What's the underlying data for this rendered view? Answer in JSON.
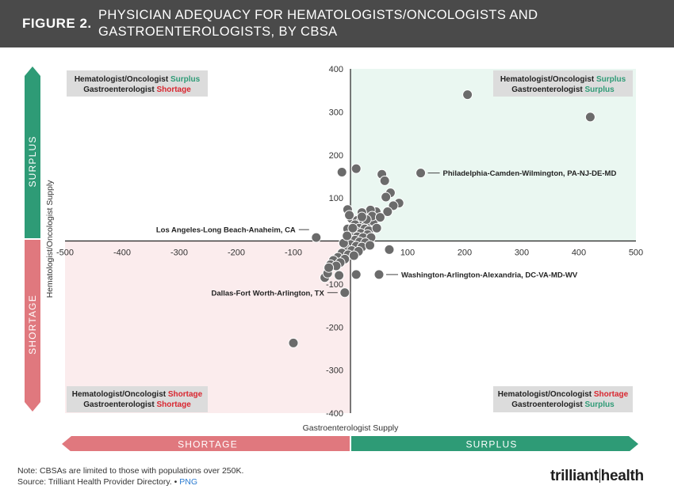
{
  "header": {
    "figure_label": "FIGURE 2.",
    "title": "PHYSICIAN ADEQUACY FOR HEMATOLOGISTS/ONCOLOGISTS AND GASTROENTEROLOGISTS, BY CBSA"
  },
  "colors": {
    "surplus": "#2e9b76",
    "shortage": "#e0787e",
    "surplus_text": "#2e9b76",
    "shortage_text": "#d9262f",
    "quadrant_surplus_bg": "#eaf7f1",
    "quadrant_shortage_bg": "#fbeced",
    "point_fill": "#6b6b6b",
    "point_stroke": "#ffffff"
  },
  "quadrants": {
    "top_left": {
      "line1": "Hematologist/Oncologist",
      "status1": "Surplus",
      "line2": "Gastroenterologist",
      "status2": "Shortage"
    },
    "top_right": {
      "line1": "Hematologist/Oncologist",
      "status1": "Surplus",
      "line2": "Gastroenterologist",
      "status2": "Surplus"
    },
    "bottom_left": {
      "line1": "Hematologist/Oncologist",
      "status1": "Shortage",
      "line2": "Gastroenterologist",
      "status2": "Shortage"
    },
    "bottom_right": {
      "line1": "Hematologist/Oncologist",
      "status1": "Shortage",
      "line2": "Gastroenterologist",
      "status2": "Surplus"
    }
  },
  "axis_bars": {
    "left_surplus": "SURPLUS",
    "left_shortage": "SHORTAGE",
    "bottom_shortage": "SHORTAGE",
    "bottom_surplus": "SURPLUS"
  },
  "chart_data": {
    "type": "scatter",
    "xlabel": "Gastroenterologist Supply",
    "ylabel": "Hematologist/Oncologist Supply",
    "xlim": [
      -500,
      500
    ],
    "ylim": [
      -400,
      400
    ],
    "xticks": [
      -500,
      -400,
      -300,
      -200,
      -100,
      0,
      100,
      200,
      300,
      400,
      500
    ],
    "yticks": [
      -400,
      -300,
      -200,
      -100,
      0,
      100,
      200,
      300,
      400
    ],
    "grid": false,
    "points": [
      [
        205,
        340
      ],
      [
        420,
        288
      ],
      [
        123,
        158
      ],
      [
        -15,
        160
      ],
      [
        10,
        168
      ],
      [
        55,
        155
      ],
      [
        60,
        140
      ],
      [
        70,
        112
      ],
      [
        62,
        102
      ],
      [
        85,
        88
      ],
      [
        75,
        82
      ],
      [
        65,
        68
      ],
      [
        45,
        68
      ],
      [
        30,
        60
      ],
      [
        35,
        72
      ],
      [
        20,
        66
      ],
      [
        -5,
        73
      ],
      [
        -60,
        8
      ],
      [
        -10,
        -120
      ],
      [
        -100,
        -237
      ],
      [
        -45,
        -85
      ],
      [
        -40,
        -75
      ],
      [
        -20,
        -80
      ],
      [
        50,
        -78
      ],
      [
        10,
        -78
      ],
      [
        68,
        -20
      ],
      [
        2,
        52
      ],
      [
        12,
        48
      ],
      [
        18,
        45
      ],
      [
        22,
        40
      ],
      [
        28,
        38
      ],
      [
        8,
        38
      ],
      [
        15,
        30
      ],
      [
        25,
        28
      ],
      [
        32,
        24
      ],
      [
        10,
        22
      ],
      [
        18,
        18
      ],
      [
        30,
        15
      ],
      [
        5,
        14
      ],
      [
        12,
        10
      ],
      [
        22,
        8
      ],
      [
        36,
        8
      ],
      [
        -2,
        4
      ],
      [
        8,
        2
      ],
      [
        16,
        -2
      ],
      [
        26,
        -4
      ],
      [
        0,
        -8
      ],
      [
        10,
        -12
      ],
      [
        20,
        -14
      ],
      [
        -8,
        -18
      ],
      [
        2,
        -22
      ],
      [
        14,
        -24
      ],
      [
        -15,
        -28
      ],
      [
        -4,
        -32
      ],
      [
        6,
        -34
      ],
      [
        -22,
        -38
      ],
      [
        -10,
        -42
      ],
      [
        -30,
        -45
      ],
      [
        -18,
        -50
      ],
      [
        -35,
        -55
      ],
      [
        -25,
        -58
      ],
      [
        -38,
        -62
      ],
      [
        -5,
        28
      ],
      [
        40,
        46
      ],
      [
        46,
        30
      ],
      [
        -2,
        60
      ],
      [
        38,
        58
      ],
      [
        52,
        55
      ],
      [
        28,
        50
      ],
      [
        -12,
        -5
      ],
      [
        4,
        30
      ],
      [
        -6,
        12
      ],
      [
        34,
        -10
      ],
      [
        20,
        56
      ]
    ],
    "annotations": [
      {
        "label": "Philadelphia-Camden-Wilmington, PA-NJ-DE-MD",
        "x": 123,
        "y": 158,
        "side": "right"
      },
      {
        "label": "Los Angeles-Long Beach-Anaheim, CA",
        "x": -60,
        "y": 8,
        "side": "left"
      },
      {
        "label": "Washington-Arlington-Alexandria, DC-VA-MD-WV",
        "x": 50,
        "y": -78,
        "side": "right"
      },
      {
        "label": "Dallas-Fort Worth-Arlington, TX",
        "x": -10,
        "y": -120,
        "side": "left"
      }
    ]
  },
  "footer": {
    "note": "Note: CBSAs are limited to those with populations over 250K.",
    "source": "Source: Trilliant Health Provider Directory.",
    "separator": "•",
    "png_link": "PNG",
    "logo_left": "trilliant",
    "logo_right": "health"
  }
}
